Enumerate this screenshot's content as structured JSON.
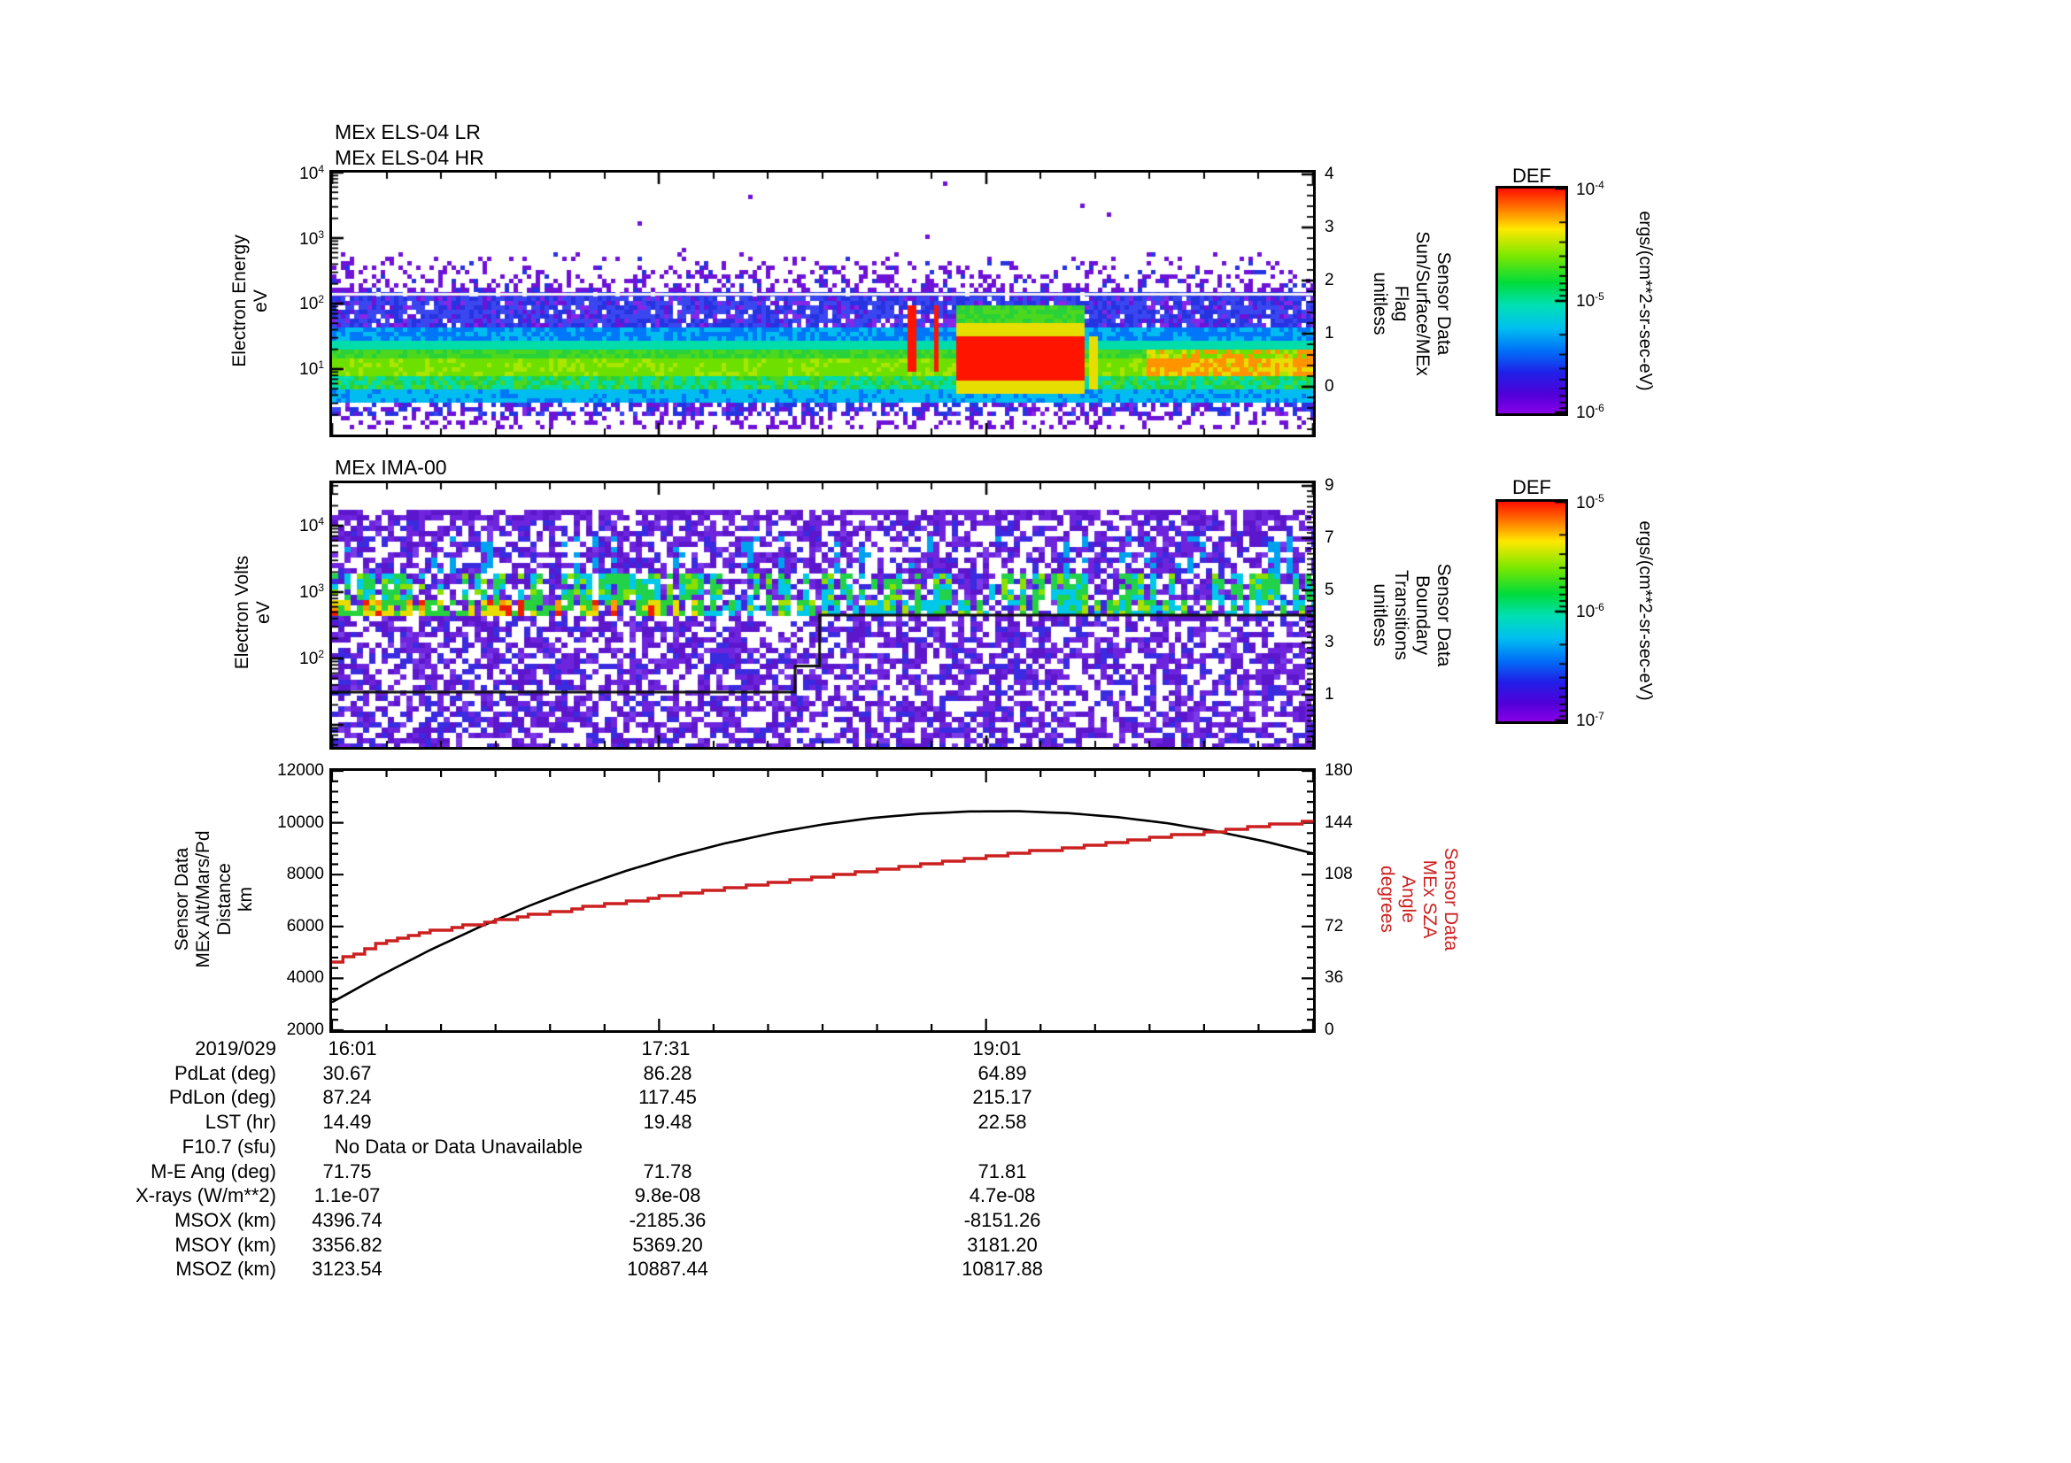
{
  "log_base": "10",
  "panel1": {
    "titles": [
      "MEx ELS-04 LR",
      "MEx ELS-04 HR"
    ],
    "ylabel_lines": [
      "Electron Energy",
      "eV"
    ],
    "ytick_exps": [
      "4",
      "3",
      "2",
      "1"
    ],
    "right_ticks": [
      "4",
      "3",
      "2",
      "1",
      "0"
    ],
    "right_label_lines": [
      "Sensor Data",
      "Sun/Surface/MEx",
      "Flag",
      "unitless"
    ]
  },
  "colorbar1": {
    "title": "DEF",
    "tick_exps": [
      "-4",
      "-5",
      "-6"
    ],
    "unit": "ergs/(cm**2-sr-sec-eV)"
  },
  "panel2": {
    "title": "MEx IMA-00",
    "ylabel_lines": [
      "Electron Volts",
      "eV"
    ],
    "ytick_exps": [
      "4",
      "3",
      "2"
    ],
    "right_ticks": [
      "9",
      "7",
      "5",
      "3",
      "1"
    ],
    "right_label_lines": [
      "Sensor Data",
      "Boundary",
      "Transitions",
      "unitless"
    ]
  },
  "colorbar2": {
    "title": "DEF",
    "tick_exps": [
      "-5",
      "-6",
      "-7"
    ],
    "unit": "ergs/(cm**2-sr-sec-eV)"
  },
  "panel3": {
    "left_label_lines": [
      "Sensor Data",
      "MEx Alt/Mars/Pd",
      "Distance",
      "km"
    ],
    "left_ticks": [
      "12000",
      "10000",
      "8000",
      "6000",
      "4000",
      "2000"
    ],
    "right_ticks": [
      "180",
      "144",
      "108",
      "72",
      "36",
      "0"
    ],
    "right_label_lines": [
      "Sensor Data",
      "MEx SZA",
      "Angle",
      "degrees"
    ],
    "xtick_labels": [
      "16:01",
      "17:31",
      "19:01"
    ],
    "date_label": "2019/029"
  },
  "table": {
    "rows": [
      {
        "label": "2019/029",
        "values": [
          "16:01",
          "17:31",
          "19:01"
        ]
      },
      {
        "label": "PdLat (deg)",
        "values": [
          "30.67",
          "86.28",
          "64.89"
        ]
      },
      {
        "label": "PdLon (deg)",
        "values": [
          "87.24",
          "117.45",
          "215.17"
        ]
      },
      {
        "label": "LST (hr)",
        "values": [
          "14.49",
          "19.48",
          "22.58"
        ]
      },
      {
        "label": "F10.7 (sfu)",
        "values": [
          "No Data or Data Unavailable",
          "",
          ""
        ],
        "span": true
      },
      {
        "label": "M-E Ang (deg)",
        "values": [
          "71.75",
          "71.78",
          "71.81"
        ]
      },
      {
        "label": "X-rays (W/m**2)",
        "values": [
          "1.1e-07",
          "9.8e-08",
          "4.7e-08"
        ]
      },
      {
        "label": "MSOX (km)",
        "values": [
          "4396.74",
          "-2185.36",
          "-8151.26"
        ]
      },
      {
        "label": "MSOY (km)",
        "values": [
          "3356.82",
          "5369.20",
          "3181.20"
        ]
      },
      {
        "label": "MSOZ (km)",
        "values": [
          "3123.54",
          "10887.44",
          "10817.88"
        ]
      }
    ]
  },
  "chart_data": [
    {
      "type": "heatmap",
      "title": "MEx ELS-04 LR / MEx ELS-04 HR",
      "xticks": [
        "16:01",
        "17:31",
        "19:01"
      ],
      "ylabel": "Electron Energy (eV)",
      "y_log_range": [
        1,
        10000
      ],
      "right_axis": {
        "label": "Sensor Data Sun/Surface/MEx Flag (unitless)",
        "range": [
          0,
          4
        ]
      },
      "colorbar": {
        "label": "DEF",
        "units": "ergs/(cm**2-sr-sec-eV)",
        "range": [
          1e-06,
          0.0001
        ]
      },
      "flag_line_value": 1.75,
      "features": {
        "core_band_eV": [
          5,
          40
        ],
        "dense_band_eV": [
          40,
          140
        ],
        "speckle_band_eV": [
          140,
          600
        ],
        "spikes_frac": [
          [
            0.583,
            0.592
          ],
          [
            0.61,
            0.618
          ]
        ],
        "blob_frac": [
          0.632,
          0.763
        ],
        "yellow_col_frac": [
          0.768,
          0.779
        ],
        "warm_tail_start_frac": 0.83
      }
    },
    {
      "type": "heatmap",
      "title": "MEx IMA-00",
      "xticks": [
        "16:01",
        "17:31",
        "19:01"
      ],
      "ylabel": "Electron Volts (eV)",
      "y_log_range": [
        5,
        40000
      ],
      "right_axis": {
        "label": "Sensor Data Boundary Transitions (unitless)",
        "range": [
          0,
          9
        ]
      },
      "colorbar": {
        "label": "DEF",
        "units": "ergs/(cm**2-sr-sec-eV)",
        "range": [
          1e-07,
          0.001
        ]
      },
      "bands": {
        "green_band_eV": [
          900,
          2200
        ],
        "bright_band_eV": [
          500,
          900
        ],
        "red_patches_frac": [
          0,
          0.37
        ]
      },
      "boundary_steps": [
        {
          "from_frac": 0,
          "to_frac": 0.472,
          "value": 1.1
        },
        {
          "from_frac": 0.472,
          "to_frac": 0.497,
          "value": 2.1
        },
        {
          "from_frac": 0.497,
          "to_frac": 1,
          "value": 4.05
        }
      ]
    },
    {
      "type": "line",
      "xticks": [
        "16:01",
        "17:31",
        "19:01"
      ],
      "left_axis": {
        "label": "Sensor Data MEx Alt/Mars/Pd Distance (km)",
        "range": [
          2000,
          12000
        ]
      },
      "right_axis": {
        "label": "Sensor Data MEx SZA Angle (degrees)",
        "range": [
          0,
          180
        ],
        "color": "#cc2020"
      },
      "series": [
        {
          "name": "MEx Alt/Mars/Pd Distance",
          "axis": "left",
          "color": "#000000",
          "values": [
            3078,
            4123,
            5092,
            5972,
            6783,
            7503,
            8148,
            8714,
            9200,
            9607,
            9933,
            10181,
            10348,
            10436,
            10444,
            10372,
            10220,
            9989,
            9678,
            9288,
            8818
          ]
        },
        {
          "name": "MEx SZA Angle",
          "axis": "right",
          "color": "#cc2020",
          "stepped": true,
          "values": [
            47,
            61.5,
            68.5,
            74.4,
            79.8,
            84.8,
            89.5,
            94.1,
            98.5,
            102.8,
            107,
            111.1,
            115.1,
            119.1,
            123,
            126.9,
            130.7,
            134.5,
            138.2,
            141.9,
            145.6
          ]
        }
      ]
    }
  ]
}
